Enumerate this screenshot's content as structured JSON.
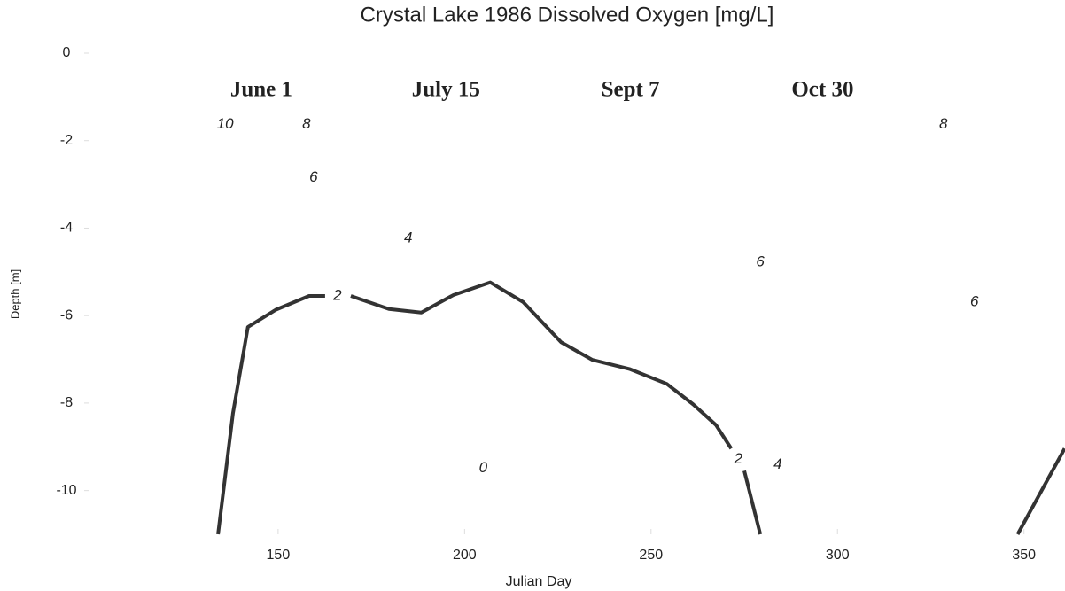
{
  "chart_data": {
    "type": "line",
    "title": "Crystal Lake 1986 Dissolved Oxygen [mg/L]",
    "x_label": "Julian Day",
    "y_label": "Depth [m]",
    "xlim": [
      98,
      361
    ],
    "ylim": [
      -11,
      0
    ],
    "xticks": [
      150,
      200,
      250,
      300,
      350
    ],
    "yticks": [
      0,
      -2,
      -4,
      -6,
      -8,
      -10
    ],
    "series": [
      {
        "name": "2",
        "color": "#333333",
        "x": [
          133.9,
          137.9,
          141.9,
          149.3,
          158.3,
          162.6,
          null,
          169.5,
          179.7,
          188.4,
          197,
          206.9,
          215.7,
          225.9,
          234.2,
          244.2,
          254.2,
          261.3,
          267.4,
          271.5,
          null,
          275,
          279.3,
          null,
          348.3,
          360.9
        ],
        "values": [
          -11,
          -8.23,
          -6.26,
          -5.87,
          -5.55,
          -5.55,
          null,
          -5.55,
          -5.85,
          -5.93,
          -5.53,
          -5.24,
          -5.69,
          -6.61,
          -7.01,
          -7.22,
          -7.56,
          -8.03,
          -8.5,
          -9.04,
          null,
          -9.55,
          -11,
          null,
          -11,
          -9.04
        ]
      }
    ],
    "contour_labels": [
      {
        "text": "10",
        "x": 135.8,
        "y": -1.63
      },
      {
        "text": "8",
        "x": 157.6,
        "y": -1.63
      },
      {
        "text": "6",
        "x": 159.5,
        "y": -2.85
      },
      {
        "text": "4",
        "x": 184.9,
        "y": -4.23
      },
      {
        "text": "2",
        "x": 165.9,
        "y": -5.55
      },
      {
        "text": "0",
        "x": 205,
        "y": -9.49
      },
      {
        "text": "6",
        "x": 279.3,
        "y": -4.78
      },
      {
        "text": "2",
        "x": 273.4,
        "y": -9.29
      },
      {
        "text": "4",
        "x": 284,
        "y": -9.41
      },
      {
        "text": "8",
        "x": 328.4,
        "y": -1.63
      },
      {
        "text": "6",
        "x": 336.7,
        "y": -5.69
      }
    ],
    "date_labels": [
      {
        "text": "June 1",
        "x": 145.5
      },
      {
        "text": "July 15",
        "x": 195
      },
      {
        "text": "Sept 7",
        "x": 244.5
      },
      {
        "text": "Oct 30",
        "x": 296
      }
    ]
  }
}
